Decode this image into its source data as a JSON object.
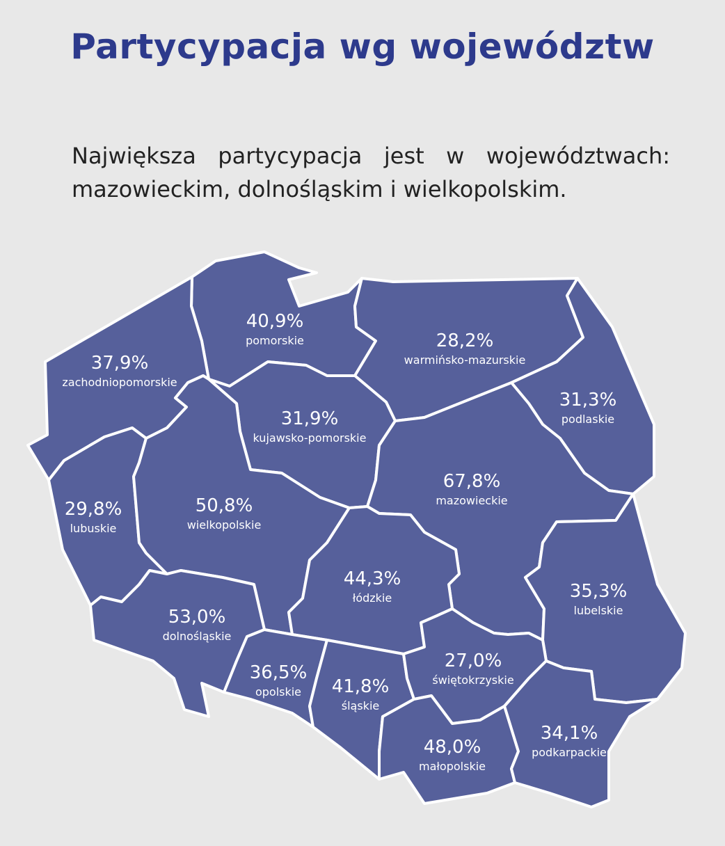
{
  "title": "Partycypacja wg województw",
  "subtitle": "Największa partycypacja jest w województwach: mazowieckim, dolnośląskim i wielkopolskim.",
  "fill_color": "#56609b",
  "title_color": "#2d3a8c",
  "regions": [
    {
      "id": "pomorskie",
      "name": "pomorskie",
      "value": "40,9%"
    },
    {
      "id": "warminsko-mazurskie",
      "name": "warmińsko-mazurskie",
      "value": "28,2%"
    },
    {
      "id": "zachodniopomorskie",
      "name": "zachodniopomorskie",
      "value": "37,9%"
    },
    {
      "id": "kujawsko-pomorskie",
      "name": "kujawsko-pomorskie",
      "value": "31,9%"
    },
    {
      "id": "podlaskie",
      "name": "podlaskie",
      "value": "31,3%"
    },
    {
      "id": "mazowieckie",
      "name": "mazowieckie",
      "value": "67,8%"
    },
    {
      "id": "lubuskie",
      "name": "lubuskie",
      "value": "29,8%"
    },
    {
      "id": "wielkopolskie",
      "name": "wielkopolskie",
      "value": "50,8%"
    },
    {
      "id": "lodzkie",
      "name": "łódzkie",
      "value": "44,3%"
    },
    {
      "id": "lubelskie",
      "name": "lubelskie",
      "value": "35,3%"
    },
    {
      "id": "dolnoslaskie",
      "name": "dolnośląskie",
      "value": "53,0%"
    },
    {
      "id": "opolskie",
      "name": "opolskie",
      "value": "36,5%"
    },
    {
      "id": "slaskie",
      "name": "śląskie",
      "value": "41,8%"
    },
    {
      "id": "swietokrzyskie",
      "name": "świętokrzyskie",
      "value": "27,0%"
    },
    {
      "id": "malopolskie",
      "name": "małopolskie",
      "value": "48,0%"
    },
    {
      "id": "podkarpackie",
      "name": "podkarpackie",
      "value": "34,1%"
    }
  ]
}
